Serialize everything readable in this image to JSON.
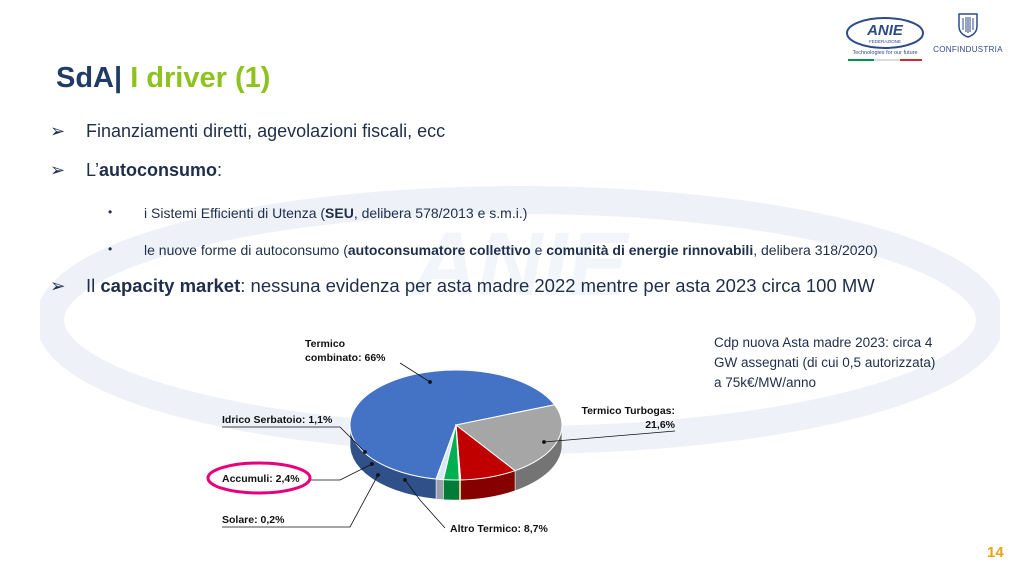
{
  "header": {
    "anie_logo_text": "ANIE",
    "anie_logo_sub": "FEDERAZIONE",
    "anie_tagline": "Technologies for our future",
    "confindustria_text": "CONFINDUSTRIA"
  },
  "title": {
    "part1": "SdA|",
    "part2": "I driver (1)"
  },
  "bullets": {
    "b1": "Finanziamenti diretti, agevolazioni fiscali, ecc",
    "b2_prefix": "L’",
    "b2_bold": "autoconsumo",
    "b2_suffix": ":",
    "s1_prefix": "i Sistemi Efficienti di Utenza (",
    "s1_bold": "SEU",
    "s1_suffix": ", delibera 578/2013 e s.m.i.)",
    "s2_prefix": "le nuove forme di autoconsumo (",
    "s2_bold1": "autoconsumatore collettivo",
    "s2_mid": " e ",
    "s2_bold2": "comunità di energie rinnovabili",
    "s2_suffix": ", delibera 318/2020)",
    "b3_prefix": "Il ",
    "b3_bold": "capacity market",
    "b3_suffix": ": nessuna evidenza per asta madre 2022 mentre per asta 2023 circa 100 MW"
  },
  "chart_data": {
    "type": "pie",
    "title": "",
    "slices": [
      {
        "label": "Termico combinato",
        "value": 66,
        "display": "66%",
        "color": "#4472c4"
      },
      {
        "label": "Termico Turbogas",
        "value": 21.6,
        "display": "21,6%",
        "color": "#a6a6a6"
      },
      {
        "label": "Altro Termico",
        "value": 8.7,
        "display": "8,7%",
        "color": "#c00000"
      },
      {
        "label": "Solare",
        "value": 0.2,
        "display": "0,2%",
        "color": "#ffc000"
      },
      {
        "label": "Accumuli",
        "value": 2.4,
        "display": "2,4%",
        "color": "#00b050"
      },
      {
        "label": "Idrico Serbatoio",
        "value": 1.1,
        "display": "1,1%",
        "color": "#dce6f2"
      }
    ],
    "labels": {
      "termico_combinato_l1": "Termico",
      "termico_combinato_l2": "combinato: 66%",
      "termico_turbogas_l1": "Termico Turbogas:",
      "termico_turbogas_l2": "21,6%",
      "altro_termico": "Altro Termico: 8,7%",
      "solare": "Solare: 0,2%",
      "accumuli": "Accumuli: 2,4%",
      "idrico": "Idrico Serbatoio: 1,1%"
    },
    "highlight": "Accumuli",
    "highlight_color": "#e6007e"
  },
  "note": {
    "line1": "Cdp nuova Asta madre 2023: circa 4",
    "line2": "GW assegnati (di cui 0,5 autorizzata)",
    "line3": "a 75k€/MW/anno"
  },
  "page_number": "14",
  "colors": {
    "title_blue": "#1f3b66",
    "title_green": "#8dc21f",
    "page_number": "#e8a317"
  }
}
